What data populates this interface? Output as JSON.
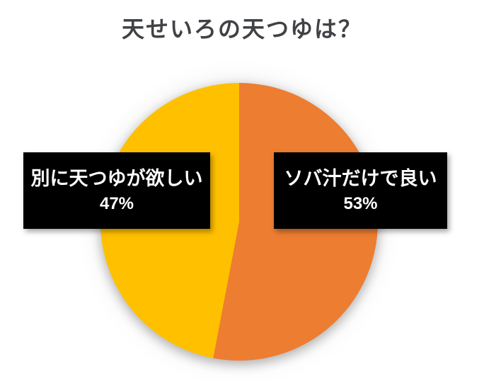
{
  "chart_data": {
    "type": "pie",
    "title": "天せいろの天つゆは？",
    "categories": [
      "ソバ汁だけで良い",
      "別に天つゆが欲しい"
    ],
    "values": [
      53,
      47
    ],
    "colors": [
      "#ED7D31",
      "#FFC000"
    ],
    "start_angle_deg": 0,
    "direction": "clockwise",
    "legend_position": "none",
    "background": "#FFFFFF",
    "title_color": "#404245",
    "labels": [
      {
        "category": "ソバ汁だけで良い",
        "percent_label": "53%",
        "side": "right"
      },
      {
        "category": "別に天つゆが欲しい",
        "percent_label": "47%",
        "side": "left"
      }
    ],
    "label_box": {
      "background": "#000000",
      "text_color": "#FFFFFF"
    }
  }
}
